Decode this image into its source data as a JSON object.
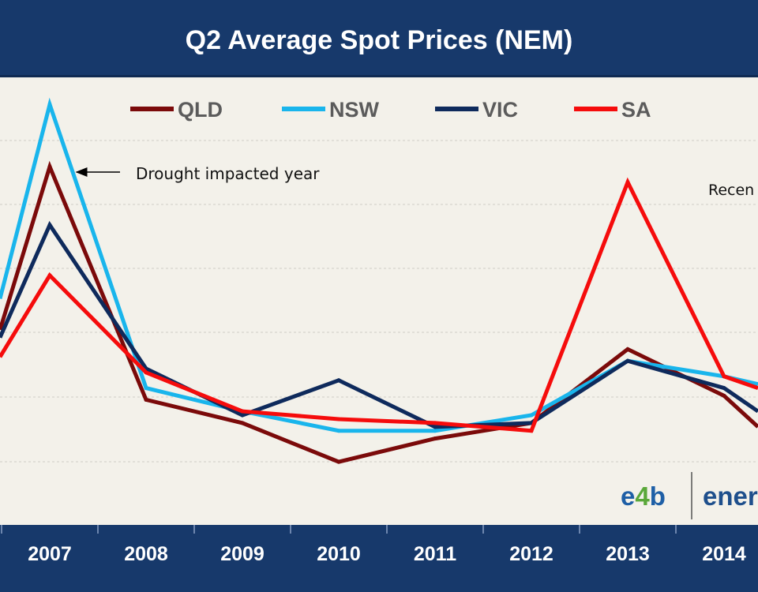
{
  "chart_data": {
    "type": "line",
    "title": "Q2 Average Spot Prices (NEM)",
    "categories": [
      "2007",
      "2008",
      "2009",
      "2010",
      "2011",
      "2012",
      "2013",
      "2014"
    ],
    "y_range": [
      0,
      100
    ],
    "series": [
      {
        "name": "QLD",
        "color": "#7b0a0a",
        "values": [
          77,
          17,
          11,
          1,
          7,
          11,
          30,
          18
        ]
      },
      {
        "name": "NSW",
        "color": "#19b5ec",
        "values": [
          93,
          20,
          14,
          9,
          9,
          13,
          27,
          23
        ]
      },
      {
        "name": "VIC",
        "color": "#0e2a5c",
        "values": [
          62,
          25,
          13,
          22,
          10,
          11,
          27,
          20
        ]
      },
      {
        "name": "SA",
        "color": "#f50c0c",
        "values": [
          49,
          24,
          14,
          12,
          11,
          9,
          73,
          23
        ]
      }
    ],
    "left_edge_values": {
      "QLD": 35,
      "NSW": 43,
      "VIC": 33,
      "SA": 28
    },
    "right_edge_values": {
      "QLD": 10,
      "NSW": 21,
      "VIC": 14,
      "SA": 20
    },
    "annotations": [
      {
        "text": "Drought impacted year",
        "target": "2007"
      },
      {
        "text": "Recen",
        "target": "2014"
      }
    ]
  },
  "header": {
    "background": "#17396b",
    "text_color": "#ffffff"
  },
  "footer": {
    "background": "#17396b"
  },
  "logo": {
    "brand": "e4b",
    "brand_digit": "4",
    "company": "ener"
  }
}
